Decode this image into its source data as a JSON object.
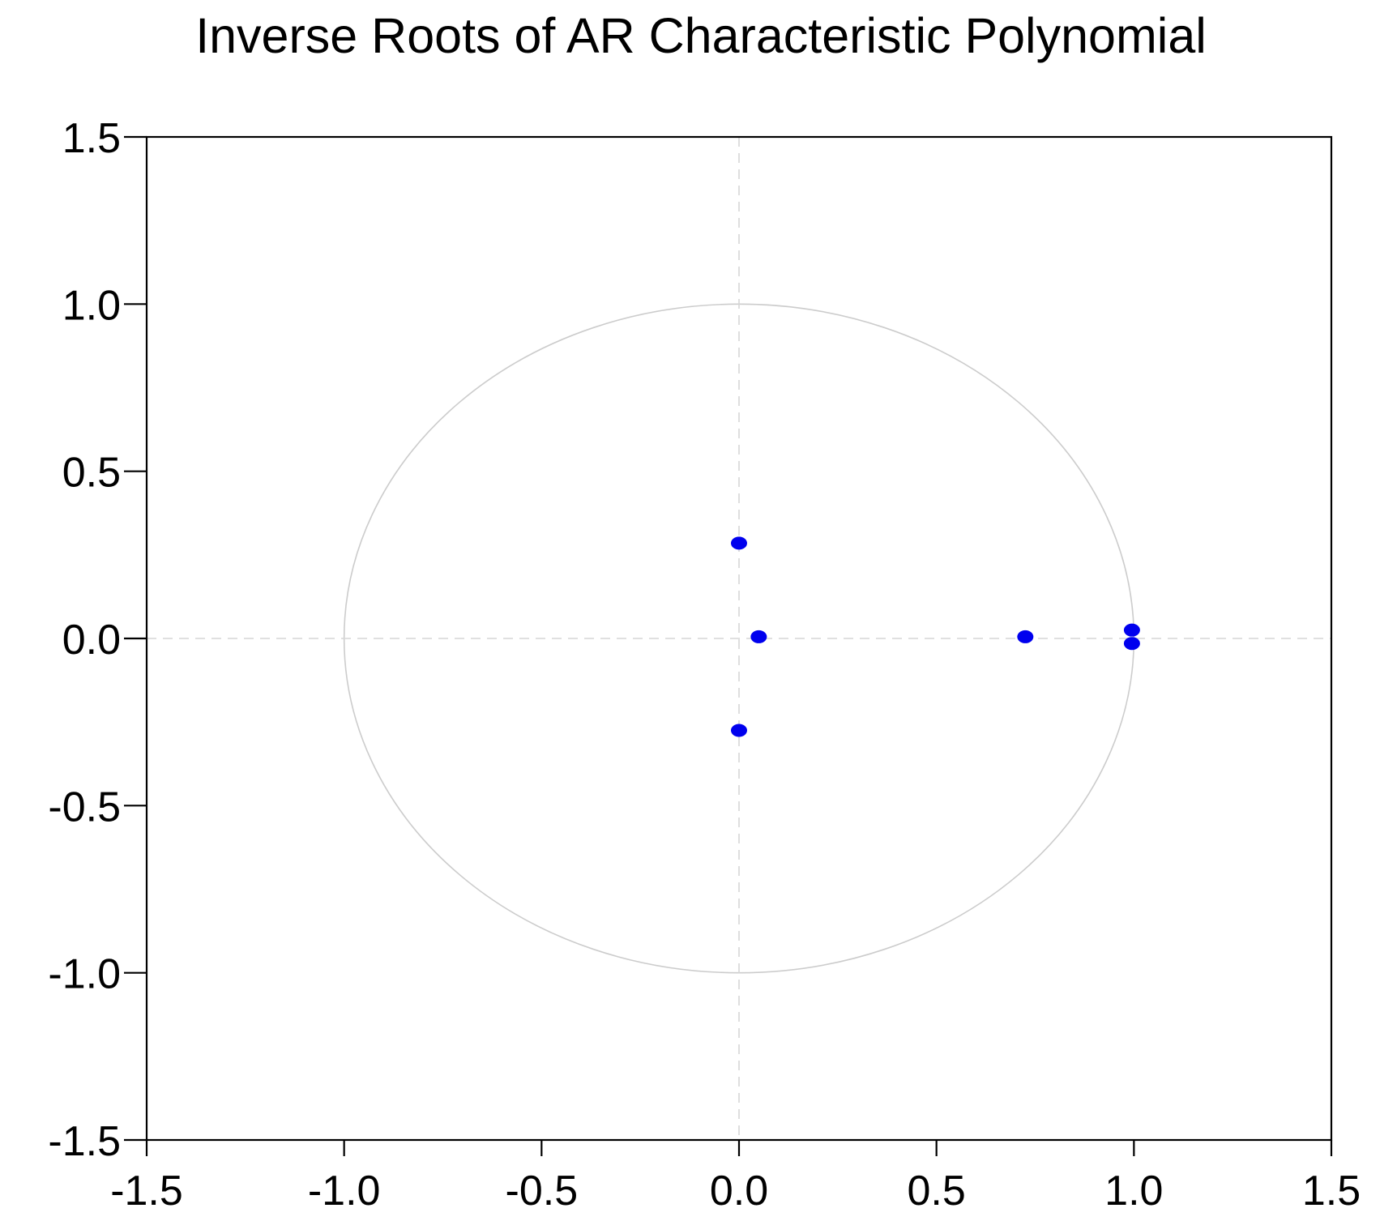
{
  "chart_data": {
    "type": "scatter",
    "title": "Inverse Roots of AR Characteristic Polynomial",
    "xlabel": "",
    "ylabel": "",
    "xlim": [
      -1.5,
      1.5
    ],
    "ylim": [
      -1.5,
      1.5
    ],
    "x_ticks": [
      "-1.5",
      "-1.0",
      "-0.5",
      "0.0",
      "0.5",
      "1.0",
      "1.5"
    ],
    "y_ticks": [
      "1.5",
      "1.0",
      "0.5",
      "0.0",
      "-0.5",
      "-1.0",
      "-1.5"
    ],
    "grid": false,
    "reference": {
      "unit_circle": true,
      "zero_lines": true
    },
    "colors": {
      "points": "#0000ee",
      "circle": "#cccccc",
      "zero_lines": "#d6d6d6",
      "frame": "#000000"
    },
    "series": [
      {
        "points": [
          {
            "x": 0.0,
            "y": 0.285
          },
          {
            "x": 0.05,
            "y": 0.005
          },
          {
            "x": 0.0,
            "y": -0.275
          },
          {
            "x": 0.725,
            "y": 0.005
          },
          {
            "x": 0.995,
            "y": 0.025
          },
          {
            "x": 0.995,
            "y": -0.015
          }
        ]
      }
    ]
  }
}
